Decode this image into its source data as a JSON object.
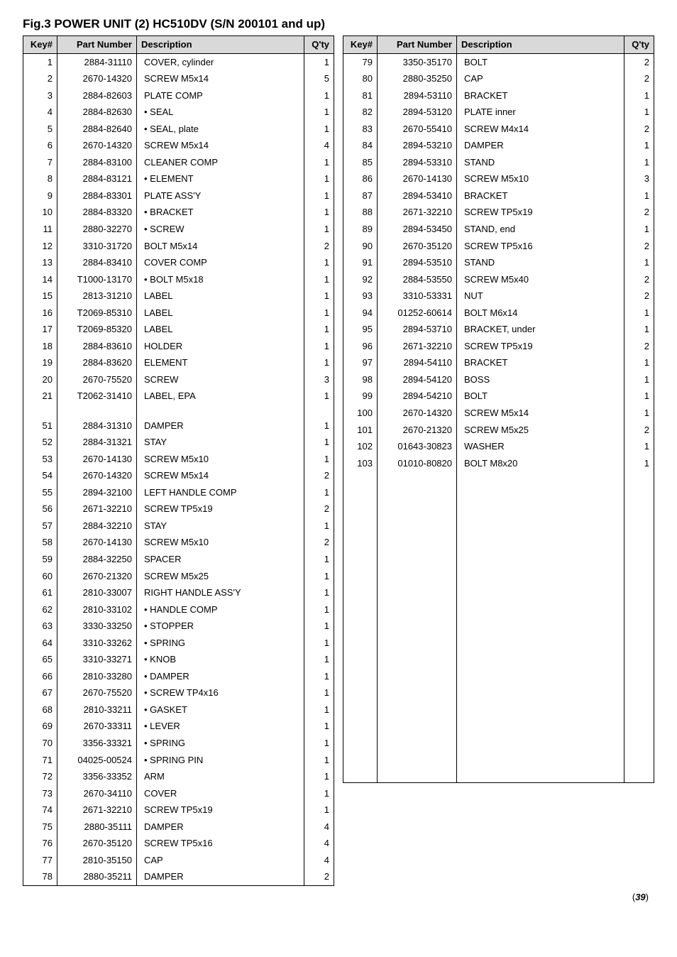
{
  "title": "Fig.3 POWER UNIT (2)  HC510DV  (S/N 200101 and up)",
  "headers": {
    "key": "Key#",
    "part": "Part Number",
    "desc": "Description",
    "qty": "Q'ty"
  },
  "pagenum_prefix": "(",
  "pagenum": "39",
  "pagenum_suffix": ")",
  "left": [
    {
      "k": "1",
      "p": "2884-31110",
      "d": "COVER, cylinder",
      "q": "1"
    },
    {
      "k": "2",
      "p": "2670-14320",
      "d": "SCREW M5x14",
      "q": "5"
    },
    {
      "k": "3",
      "p": "2884-82603",
      "d": "PLATE COMP",
      "q": "1"
    },
    {
      "k": "4",
      "p": "2884-82630",
      "d": "• SEAL",
      "q": "1"
    },
    {
      "k": "5",
      "p": "2884-82640",
      "d": "• SEAL, plate",
      "q": "1"
    },
    {
      "k": "6",
      "p": "2670-14320",
      "d": "SCREW M5x14",
      "q": "4"
    },
    {
      "k": "7",
      "p": "2884-83100",
      "d": "CLEANER COMP",
      "q": "1"
    },
    {
      "k": "8",
      "p": "2884-83121",
      "d": "• ELEMENT",
      "q": "1"
    },
    {
      "k": "9",
      "p": "2884-83301",
      "d": "PLATE ASS'Y",
      "q": "1"
    },
    {
      "k": "10",
      "p": "2884-83320",
      "d": "• BRACKET",
      "q": "1"
    },
    {
      "k": "11",
      "p": "2880-32270",
      "d": "• SCREW",
      "q": "1"
    },
    {
      "k": "12",
      "p": "3310-31720",
      "d": "BOLT M5x14",
      "q": "2"
    },
    {
      "k": "13",
      "p": "2884-83410",
      "d": "COVER COMP",
      "q": "1"
    },
    {
      "k": "14",
      "p": "T1000-13170",
      "d": "• BOLT M5x18",
      "q": "1"
    },
    {
      "k": "15",
      "p": "2813-31210",
      "d": "LABEL",
      "q": "1"
    },
    {
      "k": "16",
      "p": "T2069-85310",
      "d": "LABEL",
      "q": "1"
    },
    {
      "k": "17",
      "p": "T2069-85320",
      "d": "LABEL",
      "q": "1"
    },
    {
      "k": "18",
      "p": "2884-83610",
      "d": "HOLDER",
      "q": "1"
    },
    {
      "k": "19",
      "p": "2884-83620",
      "d": "ELEMENT",
      "q": "1"
    },
    {
      "k": "20",
      "p": "2670-75520",
      "d": "SCREW",
      "q": "3"
    },
    {
      "k": "21",
      "p": "T2062-31410",
      "d": "LABEL, EPA",
      "q": "1"
    },
    {
      "k": "",
      "p": "",
      "d": "",
      "q": ""
    },
    {
      "k": "51",
      "p": "2884-31310",
      "d": "DAMPER",
      "q": "1"
    },
    {
      "k": "52",
      "p": "2884-31321",
      "d": "STAY",
      "q": "1"
    },
    {
      "k": "53",
      "p": "2670-14130",
      "d": "SCREW M5x10",
      "q": "1"
    },
    {
      "k": "54",
      "p": "2670-14320",
      "d": "SCREW M5x14",
      "q": "2"
    },
    {
      "k": "55",
      "p": "2894-32100",
      "d": "LEFT HANDLE COMP",
      "q": "1"
    },
    {
      "k": "56",
      "p": "2671-32210",
      "d": "SCREW TP5x19",
      "q": "2"
    },
    {
      "k": "57",
      "p": "2884-32210",
      "d": "STAY",
      "q": "1"
    },
    {
      "k": "58",
      "p": "2670-14130",
      "d": "SCREW  M5x10",
      "q": "2"
    },
    {
      "k": "59",
      "p": "2884-32250",
      "d": "SPACER",
      "q": "1"
    },
    {
      "k": "60",
      "p": "2670-21320",
      "d": "SCREW M5x25",
      "q": "1"
    },
    {
      "k": "61",
      "p": "2810-33007",
      "d": "RIGHT HANDLE ASS'Y",
      "q": "1"
    },
    {
      "k": "62",
      "p": "2810-33102",
      "d": "• HANDLE COMP",
      "q": "1"
    },
    {
      "k": "63",
      "p": "3330-33250",
      "d": "• STOPPER",
      "q": "1"
    },
    {
      "k": "64",
      "p": "3310-33262",
      "d": "• SPRING",
      "q": "1"
    },
    {
      "k": "65",
      "p": "3310-33271",
      "d": "• KNOB",
      "q": "1"
    },
    {
      "k": "66",
      "p": "2810-33280",
      "d": "• DAMPER",
      "q": "1"
    },
    {
      "k": "67",
      "p": "2670-75520",
      "d": "• SCREW TP4x16",
      "q": "1"
    },
    {
      "k": "68",
      "p": "2810-33211",
      "d": "• GASKET",
      "q": "1"
    },
    {
      "k": "69",
      "p": "2670-33311",
      "d": "• LEVER",
      "q": "1"
    },
    {
      "k": "70",
      "p": "3356-33321",
      "d": "• SPRING",
      "q": "1"
    },
    {
      "k": "71",
      "p": "04025-00524",
      "d": "• SPRING PIN",
      "q": "1"
    },
    {
      "k": "72",
      "p": "3356-33352",
      "d": "ARM",
      "q": "1"
    },
    {
      "k": "73",
      "p": "2670-34110",
      "d": "COVER",
      "q": "1"
    },
    {
      "k": "74",
      "p": "2671-32210",
      "d": "SCREW TP5x19",
      "q": "1"
    },
    {
      "k": "75",
      "p": "2880-35111",
      "d": "DAMPER",
      "q": "4"
    },
    {
      "k": "76",
      "p": "2670-35120",
      "d": "SCREW TP5x16",
      "q": "4"
    },
    {
      "k": "77",
      "p": "2810-35150",
      "d": "CAP",
      "q": "4"
    },
    {
      "k": "78",
      "p": "2880-35211",
      "d": "DAMPER",
      "q": "2"
    }
  ],
  "right": [
    {
      "k": "79",
      "p": "3350-35170",
      "d": "BOLT",
      "q": "2"
    },
    {
      "k": "80",
      "p": "2880-35250",
      "d": "CAP",
      "q": "2"
    },
    {
      "k": "81",
      "p": "2894-53110",
      "d": "BRACKET",
      "q": "1"
    },
    {
      "k": "82",
      "p": "2894-53120",
      "d": "PLATE inner",
      "q": "1"
    },
    {
      "k": "83",
      "p": "2670-55410",
      "d": "SCREW M4x14",
      "q": "2"
    },
    {
      "k": "84",
      "p": "2894-53210",
      "d": "DAMPER",
      "q": "1"
    },
    {
      "k": "85",
      "p": "2894-53310",
      "d": "STAND",
      "q": "1"
    },
    {
      "k": "86",
      "p": "2670-14130",
      "d": "SCREW M5x10",
      "q": "3"
    },
    {
      "k": "87",
      "p": "2894-53410",
      "d": "BRACKET",
      "q": "1"
    },
    {
      "k": "88",
      "p": "2671-32210",
      "d": "SCREW TP5x19",
      "q": "2"
    },
    {
      "k": "89",
      "p": "2894-53450",
      "d": "STAND, end",
      "q": "1"
    },
    {
      "k": "90",
      "p": "2670-35120",
      "d": "SCREW TP5x16",
      "q": "2"
    },
    {
      "k": "91",
      "p": "2894-53510",
      "d": "STAND",
      "q": "1"
    },
    {
      "k": "92",
      "p": "2884-53550",
      "d": "SCREW M5x40",
      "q": "2"
    },
    {
      "k": "93",
      "p": "3310-53331",
      "d": "NUT",
      "q": "2"
    },
    {
      "k": "94",
      "p": "01252-60614",
      "d": "BOLT M6x14",
      "q": "1"
    },
    {
      "k": "95",
      "p": "2894-53710",
      "d": "BRACKET, under",
      "q": "1"
    },
    {
      "k": "96",
      "p": "2671-32210",
      "d": "SCREW TP5x19",
      "q": "2"
    },
    {
      "k": "97",
      "p": "2894-54110",
      "d": "BRACKET",
      "q": "1"
    },
    {
      "k": "98",
      "p": "2894-54120",
      "d": "BOSS",
      "q": "1"
    },
    {
      "k": "99",
      "p": "2894-54210",
      "d": "BOLT",
      "q": "1"
    },
    {
      "k": "100",
      "p": "2670-14320",
      "d": "SCREW M5x14",
      "q": "1"
    },
    {
      "k": "101",
      "p": "2670-21320",
      "d": "SCREW M5x25",
      "q": "2"
    },
    {
      "k": "102",
      "p": "01643-30823",
      "d": "WASHER",
      "q": "1"
    },
    {
      "k": "103",
      "p": "01010-80820",
      "d": "BOLT M8x20",
      "q": "1"
    }
  ],
  "right_pad_to": 50
}
